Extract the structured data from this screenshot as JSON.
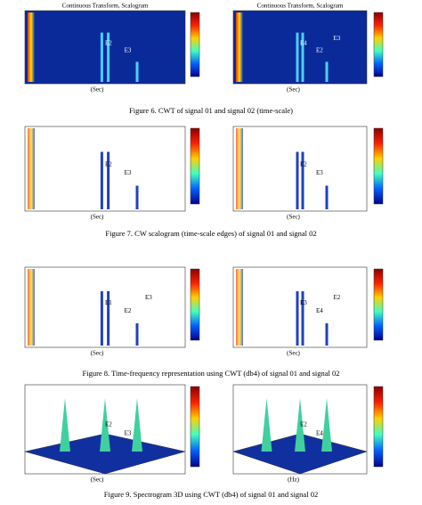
{
  "figures": [
    {
      "caption": "Figure 6.   CWT of signal 01 and signal 02 (time-scale)",
      "panels": [
        {
          "title": "Continuous Transform, Scalogram",
          "xlabel": "(Sec)",
          "labels": [
            "E2",
            "E3"
          ]
        },
        {
          "title": "Continuous Transform, Scalogram",
          "xlabel": "(Sec)",
          "labels": [
            "E4",
            "E2",
            "E3"
          ]
        }
      ]
    },
    {
      "caption": "Figure 7.   CW scalogram (time-scale edges) of signal 01 and signal 02",
      "panels": [
        {
          "xlabel": "(Sec)",
          "labels": [
            "E2",
            "E3"
          ]
        },
        {
          "xlabel": "(Sec)",
          "labels": [
            "E2",
            "E3"
          ]
        }
      ]
    },
    {
      "caption": "Figure 8.   Time-frequency representation using CWT (db4) of signal 01 and signal 02",
      "panels": [
        {
          "xlabel": "(Sec)",
          "labels": [
            "E1",
            "E2",
            "E3"
          ]
        },
        {
          "xlabel": "(Sec)",
          "labels": [
            "E3",
            "E4",
            "E2"
          ]
        }
      ]
    },
    {
      "caption": "Figure 9.   Spectrogram 3D using CWT (db4) of signal 01 and signal 02",
      "panels": [
        {
          "xlabel": "(Sec)",
          "labels": [
            "E2",
            "E3"
          ]
        },
        {
          "xlabel": "(Hz)",
          "labels": [
            "E2",
            "E4"
          ]
        }
      ]
    }
  ]
}
